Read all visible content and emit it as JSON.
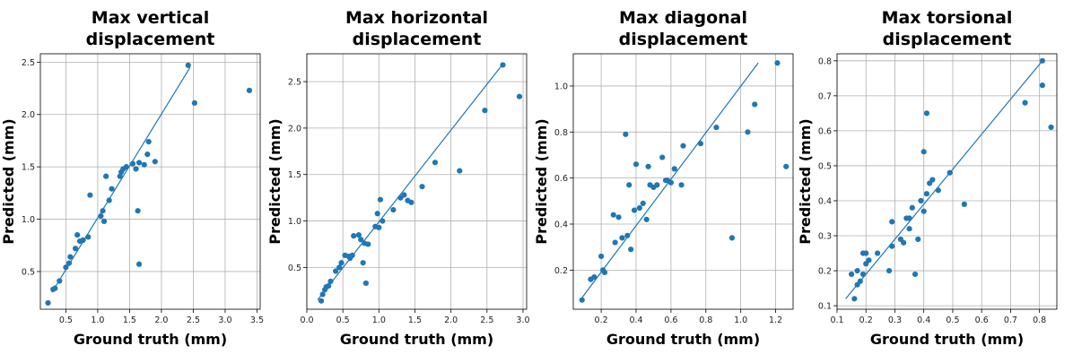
{
  "chart_data": [
    {
      "type": "scatter",
      "title": [
        "Max vertical",
        "displacement"
      ],
      "xlabel": "Ground truth (mm)",
      "ylabel": "Predicted (mm)",
      "xlim": [
        0.1,
        3.55
      ],
      "ylim": [
        0.14,
        2.58
      ],
      "xticks": [
        "0.5",
        "1.0",
        "1.5",
        "2.0",
        "2.5",
        "3.0",
        "3.5"
      ],
      "yticks": [
        "0.5",
        "1.0",
        "1.5",
        "2.0",
        "2.5"
      ],
      "grid": true,
      "fit_line": [
        [
          0.28,
          0.3
        ],
        [
          2.45,
          2.45
        ]
      ],
      "points": [
        [
          0.22,
          0.2
        ],
        [
          0.3,
          0.33
        ],
        [
          0.33,
          0.34
        ],
        [
          0.4,
          0.41
        ],
        [
          0.5,
          0.54
        ],
        [
          0.55,
          0.58
        ],
        [
          0.57,
          0.64
        ],
        [
          0.65,
          0.72
        ],
        [
          0.68,
          0.85
        ],
        [
          0.72,
          0.79
        ],
        [
          0.77,
          0.8
        ],
        [
          0.85,
          0.83
        ],
        [
          0.88,
          1.23
        ],
        [
          1.05,
          1.03
        ],
        [
          1.08,
          1.08
        ],
        [
          1.1,
          0.98
        ],
        [
          1.13,
          1.41
        ],
        [
          1.18,
          1.18
        ],
        [
          1.22,
          1.29
        ],
        [
          1.35,
          1.41
        ],
        [
          1.37,
          1.45
        ],
        [
          1.4,
          1.48
        ],
        [
          1.45,
          1.5
        ],
        [
          1.55,
          1.53
        ],
        [
          1.6,
          1.48
        ],
        [
          1.65,
          1.54
        ],
        [
          1.63,
          1.08
        ],
        [
          1.65,
          0.57
        ],
        [
          1.73,
          1.52
        ],
        [
          1.78,
          1.62
        ],
        [
          1.8,
          1.74
        ],
        [
          1.9,
          1.55
        ],
        [
          2.42,
          2.47
        ],
        [
          2.52,
          2.11
        ],
        [
          3.38,
          2.23
        ]
      ]
    },
    {
      "type": "scatter",
      "title": [
        "Max horizontal",
        "displacement"
      ],
      "xlabel": "Ground truth (mm)",
      "ylabel": "Predicted (mm)",
      "xlim": [
        0.0,
        3.05
      ],
      "ylim": [
        0.05,
        2.8
      ],
      "xticks": [
        "0.0",
        "0.5",
        "1.0",
        "1.5",
        "2.0",
        "2.5",
        "3.0"
      ],
      "yticks": [
        "0.5",
        "1.0",
        "1.5",
        "2.0",
        "2.5"
      ],
      "grid": true,
      "fit_line": [
        [
          0.15,
          0.15
        ],
        [
          2.7,
          2.67
        ]
      ],
      "points": [
        [
          0.2,
          0.14
        ],
        [
          0.22,
          0.21
        ],
        [
          0.25,
          0.26
        ],
        [
          0.27,
          0.29
        ],
        [
          0.3,
          0.3
        ],
        [
          0.33,
          0.35
        ],
        [
          0.4,
          0.46
        ],
        [
          0.45,
          0.5
        ],
        [
          0.48,
          0.55
        ],
        [
          0.53,
          0.63
        ],
        [
          0.58,
          0.62
        ],
        [
          0.6,
          0.6
        ],
        [
          0.63,
          0.63
        ],
        [
          0.65,
          0.84
        ],
        [
          0.72,
          0.85
        ],
        [
          0.75,
          0.8
        ],
        [
          0.78,
          0.55
        ],
        [
          0.8,
          0.76
        ],
        [
          0.82,
          0.33
        ],
        [
          0.85,
          0.75
        ],
        [
          0.95,
          0.94
        ],
        [
          0.98,
          1.08
        ],
        [
          1.0,
          0.93
        ],
        [
          1.02,
          1.23
        ],
        [
          1.05,
          1.0
        ],
        [
          1.2,
          1.12
        ],
        [
          1.3,
          1.25
        ],
        [
          1.35,
          1.28
        ],
        [
          1.4,
          1.22
        ],
        [
          1.45,
          1.2
        ],
        [
          1.6,
          1.37
        ],
        [
          1.78,
          1.63
        ],
        [
          2.12,
          1.54
        ],
        [
          2.47,
          2.19
        ],
        [
          2.72,
          2.68
        ],
        [
          2.95,
          2.34
        ]
      ]
    },
    {
      "type": "scatter",
      "title": [
        "Max diagonal",
        "displacement"
      ],
      "xlabel": "Ground truth (mm)",
      "ylabel": "Predicted (mm)",
      "xlim": [
        0.04,
        1.3
      ],
      "ylim": [
        0.03,
        1.14
      ],
      "xticks": [
        "0.2",
        "0.4",
        "0.6",
        "0.8",
        "1.0",
        "1.2"
      ],
      "yticks": [
        "0.2",
        "0.4",
        "0.6",
        "0.8",
        "1.0"
      ],
      "grid": true,
      "fit_line": [
        [
          0.08,
          0.07
        ],
        [
          1.1,
          1.1
        ]
      ],
      "points": [
        [
          0.09,
          0.07
        ],
        [
          0.14,
          0.16
        ],
        [
          0.16,
          0.17
        ],
        [
          0.2,
          0.26
        ],
        [
          0.21,
          0.2
        ],
        [
          0.22,
          0.19
        ],
        [
          0.27,
          0.44
        ],
        [
          0.28,
          0.32
        ],
        [
          0.3,
          0.43
        ],
        [
          0.32,
          0.34
        ],
        [
          0.34,
          0.79
        ],
        [
          0.35,
          0.35
        ],
        [
          0.36,
          0.57
        ],
        [
          0.37,
          0.29
        ],
        [
          0.39,
          0.46
        ],
        [
          0.4,
          0.66
        ],
        [
          0.42,
          0.47
        ],
        [
          0.44,
          0.49
        ],
        [
          0.46,
          0.42
        ],
        [
          0.47,
          0.65
        ],
        [
          0.48,
          0.57
        ],
        [
          0.5,
          0.56
        ],
        [
          0.52,
          0.57
        ],
        [
          0.55,
          0.69
        ],
        [
          0.57,
          0.59
        ],
        [
          0.58,
          0.59
        ],
        [
          0.6,
          0.58
        ],
        [
          0.62,
          0.64
        ],
        [
          0.66,
          0.57
        ],
        [
          0.67,
          0.74
        ],
        [
          0.77,
          0.75
        ],
        [
          0.86,
          0.82
        ],
        [
          0.95,
          0.34
        ],
        [
          1.04,
          0.8
        ],
        [
          1.08,
          0.92
        ],
        [
          1.21,
          1.1
        ],
        [
          1.26,
          0.65
        ]
      ]
    },
    {
      "type": "scatter",
      "title": [
        "Max torsional",
        "displacement"
      ],
      "xlabel": "Ground truth (mm)",
      "ylabel": "Predicted (mm)",
      "xlim": [
        0.1,
        0.86
      ],
      "ylim": [
        0.09,
        0.82
      ],
      "xticks": [
        "0.1",
        "0.2",
        "0.3",
        "0.4",
        "0.5",
        "0.6",
        "0.7",
        "0.8"
      ],
      "yticks": [
        "0.1",
        "0.2",
        "0.3",
        "0.4",
        "0.5",
        "0.6",
        "0.7",
        "0.8"
      ],
      "grid": true,
      "fit_line": [
        [
          0.13,
          0.12
        ],
        [
          0.81,
          0.8
        ]
      ],
      "points": [
        [
          0.15,
          0.19
        ],
        [
          0.16,
          0.12
        ],
        [
          0.17,
          0.16
        ],
        [
          0.17,
          0.2
        ],
        [
          0.18,
          0.17
        ],
        [
          0.19,
          0.19
        ],
        [
          0.19,
          0.25
        ],
        [
          0.2,
          0.22
        ],
        [
          0.2,
          0.25
        ],
        [
          0.21,
          0.23
        ],
        [
          0.24,
          0.25
        ],
        [
          0.28,
          0.2
        ],
        [
          0.29,
          0.34
        ],
        [
          0.29,
          0.27
        ],
        [
          0.32,
          0.29
        ],
        [
          0.33,
          0.28
        ],
        [
          0.34,
          0.35
        ],
        [
          0.35,
          0.35
        ],
        [
          0.35,
          0.32
        ],
        [
          0.36,
          0.38
        ],
        [
          0.37,
          0.19
        ],
        [
          0.38,
          0.29
        ],
        [
          0.39,
          0.4
        ],
        [
          0.4,
          0.37
        ],
        [
          0.41,
          0.65
        ],
        [
          0.4,
          0.54
        ],
        [
          0.41,
          0.42
        ],
        [
          0.42,
          0.45
        ],
        [
          0.43,
          0.46
        ],
        [
          0.45,
          0.43
        ],
        [
          0.49,
          0.48
        ],
        [
          0.54,
          0.39
        ],
        [
          0.75,
          0.68
        ],
        [
          0.81,
          0.8
        ],
        [
          0.81,
          0.73
        ],
        [
          0.84,
          0.61
        ]
      ]
    }
  ],
  "colors": {
    "point": "#1f77b4",
    "line": "#1f77b4",
    "grid": "#b0b0b0",
    "axis": "#000000"
  }
}
